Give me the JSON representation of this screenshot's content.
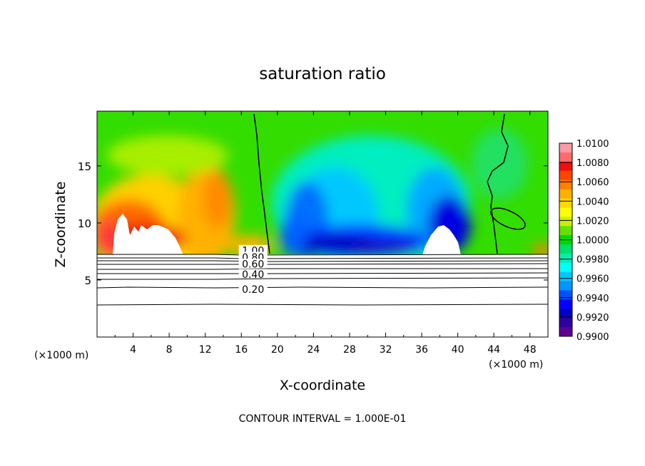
{
  "chart_data": {
    "type": "heatmap",
    "title": "saturation ratio",
    "xlabel": "X-coordinate",
    "ylabel": "Z-coordinate",
    "x_unit_left": "(×1000 m)",
    "x_unit_right": "(×1000 m)",
    "xlim": [
      0,
      50
    ],
    "ylim": [
      0,
      19.8
    ],
    "x_ticks": [
      "4",
      "8",
      "12",
      "16",
      "20",
      "24",
      "28",
      "32",
      "36",
      "40",
      "44",
      "48"
    ],
    "x_tick_values": [
      4,
      8,
      12,
      16,
      20,
      24,
      28,
      32,
      36,
      40,
      44,
      48
    ],
    "y_ticks": [
      "5",
      "10",
      "15"
    ],
    "y_tick_values": [
      5,
      10,
      15
    ],
    "footer": "CONTOUR INTERVAL = 1.000E-01",
    "colorbar": {
      "labels": [
        "1.0100",
        "1.0080",
        "1.0060",
        "1.0040",
        "1.0020",
        "1.0000",
        "0.9980",
        "0.9960",
        "0.9940",
        "0.9920",
        "0.9900"
      ],
      "values": [
        1.01,
        1.008,
        1.006,
        1.004,
        1.002,
        1.0,
        0.998,
        0.996,
        0.994,
        0.992,
        0.99
      ],
      "colors": [
        "#ff9aa6",
        "#ff6a6a",
        "#ee1010",
        "#ff4400",
        "#ff7f00",
        "#ffb000",
        "#ffd700",
        "#ffff00",
        "#c8f000",
        "#66e000",
        "#00d700",
        "#00e06a",
        "#00f0b0",
        "#00ffff",
        "#00c8ff",
        "#0096ff",
        "#0050ff",
        "#0000ff",
        "#0000c8",
        "#3000a0",
        "#600090"
      ]
    },
    "contour_labels": [
      {
        "text": "1.00",
        "x": 17.3,
        "z": 7.6
      },
      {
        "text": "0.80",
        "x": 17.3,
        "z": 7.0
      },
      {
        "text": "0.60",
        "x": 17.3,
        "z": 6.4
      },
      {
        "text": "0.40",
        "x": 17.3,
        "z": 5.5
      },
      {
        "text": "0.20",
        "x": 17.3,
        "z": 4.2
      }
    ],
    "contour_levels": [
      1.0,
      0.8,
      0.6,
      0.4,
      0.2
    ]
  }
}
